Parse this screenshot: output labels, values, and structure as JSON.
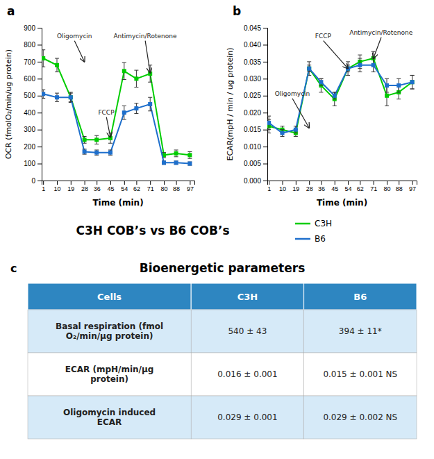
{
  "title": "C3H COB’s vs B6 COB’s",
  "chart_data": [
    {
      "type": "line",
      "label": "a",
      "marker": "square",
      "grid": false,
      "xlabel": "Time (min)",
      "ylabel": "OCR (fmolO₂/min/ug protein)",
      "x": [
        1,
        10,
        19,
        28,
        36,
        45,
        54,
        62,
        71,
        80,
        88,
        97
      ],
      "xlim": [
        0,
        100
      ],
      "xticks": [
        1,
        10,
        19,
        28,
        36,
        45,
        54,
        62,
        71,
        80,
        88,
        97
      ],
      "ylim": [
        0,
        900
      ],
      "yticks": [
        0,
        100,
        200,
        300,
        400,
        500,
        600,
        700,
        800,
        900
      ],
      "series": [
        {
          "name": "C3H",
          "color": "#00cc00",
          "values": [
            720,
            680,
            490,
            240,
            240,
            250,
            645,
            600,
            630,
            150,
            160,
            150
          ],
          "errors": [
            50,
            40,
            30,
            20,
            25,
            30,
            50,
            50,
            50,
            15,
            20,
            20
          ]
        },
        {
          "name": "B6",
          "color": "#1e6fcc",
          "values": [
            510,
            490,
            490,
            170,
            165,
            165,
            400,
            425,
            450,
            105,
            105,
            100
          ],
          "errors": [
            25,
            25,
            25,
            15,
            15,
            15,
            40,
            30,
            40,
            10,
            10,
            10
          ]
        }
      ],
      "annotations": [
        {
          "text": "Oligomycin",
          "x": 28,
          "y": 700,
          "text_x": 10,
          "text_y": 840
        },
        {
          "text": "FCCP",
          "x": 45,
          "y": 255,
          "text_x": 37,
          "text_y": 390
        },
        {
          "text": "Antimycin/Rotenone",
          "x": 71,
          "y": 635,
          "text_x": 47,
          "text_y": 840
        }
      ]
    },
    {
      "type": "line",
      "label": "b",
      "marker": "square",
      "grid": false,
      "xlabel": "Time (min)",
      "ylabel": "ECAR(mpH / min / ug protein)",
      "x": [
        1,
        10,
        19,
        28,
        36,
        45,
        54,
        62,
        71,
        80,
        88,
        97
      ],
      "xlim": [
        0,
        100
      ],
      "xticks": [
        1,
        10,
        19,
        28,
        36,
        45,
        54,
        62,
        71,
        80,
        88,
        97
      ],
      "ylim": [
        0,
        0.045
      ],
      "yticks": [
        {
          "value": 0,
          "label": "0.000"
        },
        {
          "value": 0.005,
          "label": "0.005"
        },
        {
          "value": 0.01,
          "label": "0.010"
        },
        {
          "value": 0.015,
          "label": "0.015"
        },
        {
          "value": 0.02,
          "label": "0.020"
        },
        {
          "value": 0.025,
          "label": "0.025"
        },
        {
          "value": 0.03,
          "label": "0.030"
        },
        {
          "value": 0.035,
          "label": "0.035"
        },
        {
          "value": 0.04,
          "label": "0.040"
        },
        {
          "value": 0.045,
          "label": "0.045"
        }
      ],
      "series": [
        {
          "name": "C3H",
          "color": "#00cc00",
          "values": [
            0.016,
            0.015,
            0.014,
            0.033,
            0.028,
            0.024,
            0.033,
            0.035,
            0.036,
            0.025,
            0.026,
            0.029
          ],
          "errors": [
            0.002,
            0.001,
            0.001,
            0.002,
            0.002,
            0.002,
            0.002,
            0.002,
            0.002,
            0.003,
            0.002,
            0.002
          ]
        },
        {
          "name": "B6",
          "color": "#1e6fcc",
          "values": [
            0.017,
            0.014,
            0.015,
            0.033,
            0.029,
            0.025,
            0.033,
            0.034,
            0.034,
            0.028,
            0.028,
            0.029
          ],
          "errors": [
            0.002,
            0.001,
            0.001,
            0.001,
            0.001,
            0.001,
            0.001,
            0.002,
            0.002,
            0.002,
            0.002,
            0.002
          ]
        }
      ],
      "annotations": [
        {
          "text": "Oligomycin",
          "x": 28,
          "y": 0.0155,
          "text_x": 5,
          "text_y": 0.025
        },
        {
          "text": "FCCP",
          "x": 54,
          "y": 0.033,
          "text_x": 32,
          "text_y": 0.042
        },
        {
          "text": "Antimycin/Rotenone",
          "x": 71,
          "y": 0.036,
          "text_x": 55,
          "text_y": 0.043
        }
      ]
    },
    {
      "type": "table",
      "label": "c",
      "title": "Bioenergetic parameters",
      "color": "#2e86c1",
      "colors": [
        "#d6eaf8",
        "#ffffff",
        "#d6eaf8"
      ],
      "header": [
        "Cells",
        "C3H",
        "B6"
      ],
      "rows": [
        [
          "Basal respiration  (fmol\nO₂/min/µg protein)",
          "540 ± 43",
          "394 ± 11*"
        ],
        [
          "ECAR (mpH/min/µg\nprotein)",
          "0.016 ± 0.001",
          "0.015 ± 0.001 NS"
        ],
        [
          "Oligomycin induced\nECAR",
          "0.029 ± 0.001",
          "0.029 ± 0.002 NS"
        ]
      ]
    }
  ]
}
